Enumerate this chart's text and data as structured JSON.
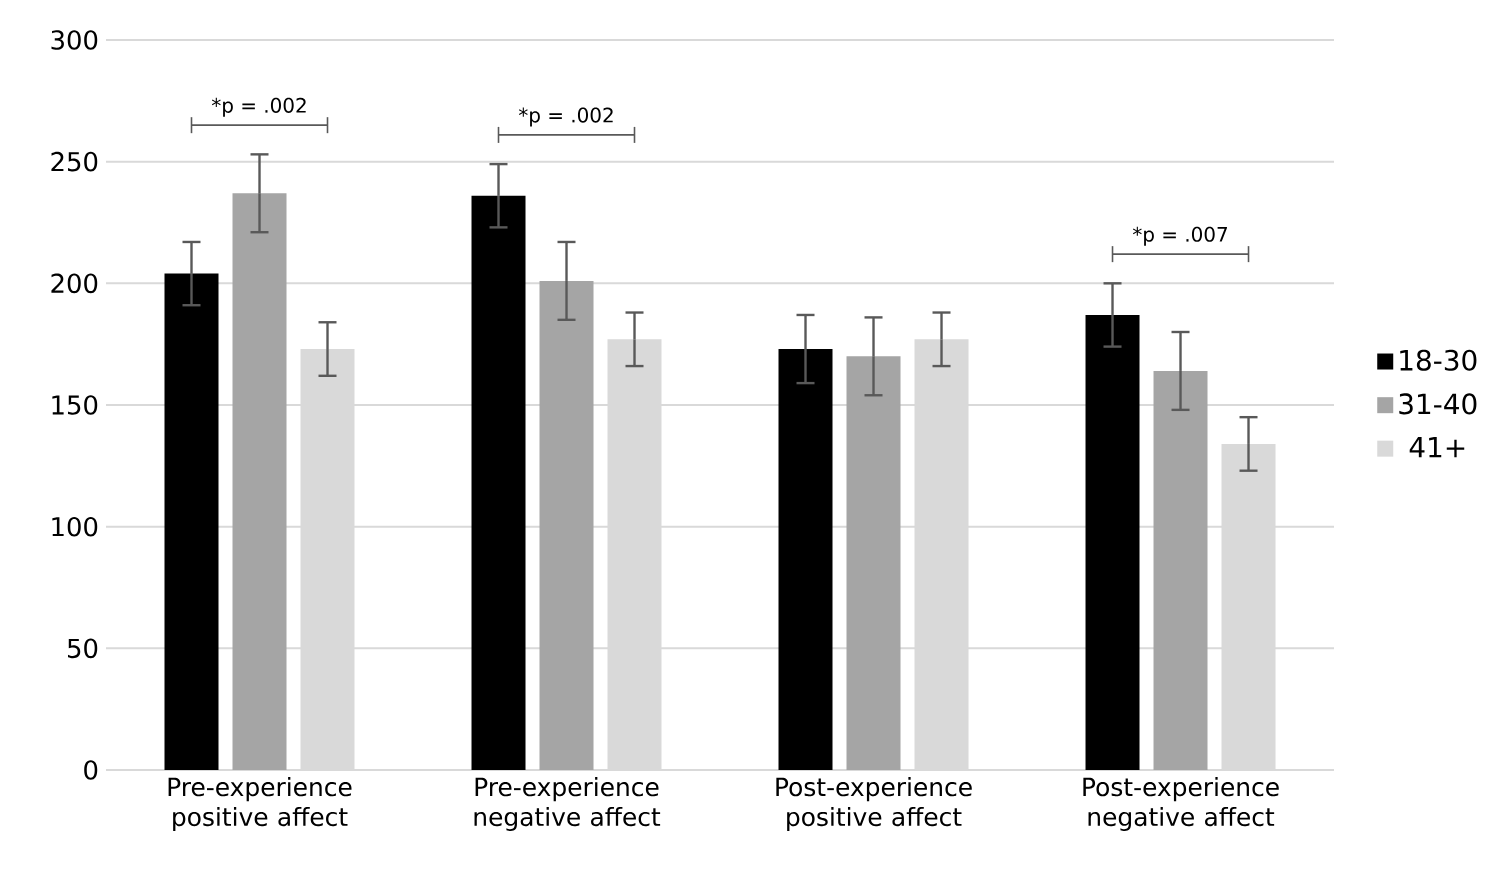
{
  "chart_data": {
    "type": "bar",
    "categories": [
      "Pre-experience positive affect",
      "Pre-experience negative affect",
      "Post-experience positive affect",
      "Post-experience negative affect"
    ],
    "series": [
      {
        "name": "18-30",
        "color": "#000000",
        "values": [
          204,
          236,
          173,
          187
        ],
        "errors": [
          13,
          13,
          14,
          13
        ]
      },
      {
        "name": "31-40",
        "color": "#a5a5a5",
        "values": [
          237,
          201,
          170,
          164
        ],
        "errors": [
          16,
          16,
          16,
          16
        ]
      },
      {
        "name": "41+",
        "color": "#d9d9d9",
        "values": [
          173,
          177,
          177,
          134
        ],
        "errors": [
          11,
          11,
          11,
          11
        ]
      }
    ],
    "ylim": [
      0,
      300
    ],
    "yticks": [
      0,
      50,
      100,
      150,
      200,
      250,
      300
    ],
    "grid": "y",
    "legend": "right",
    "annotations": [
      "*p = .002",
      "*p = .002",
      "*p = .007"
    ]
  }
}
